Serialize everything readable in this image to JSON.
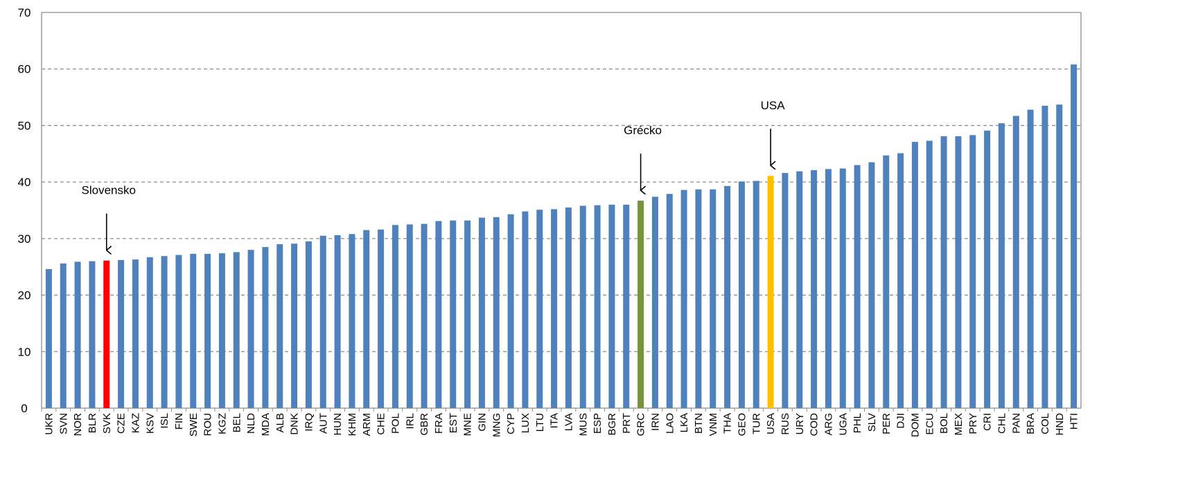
{
  "chart_data": {
    "type": "bar",
    "categories": [
      "UKR",
      "SVN",
      "NOR",
      "BLR",
      "SVK",
      "CZE",
      "KAZ",
      "KSV",
      "ISL",
      "FIN",
      "SWE",
      "ROU",
      "KGZ",
      "BEL",
      "NLD",
      "MDA",
      "ALB",
      "DNK",
      "IRQ",
      "AUT",
      "HUN",
      "KHM",
      "ARM",
      "CHE",
      "POL",
      "IRL",
      "GBR",
      "FRA",
      "EST",
      "MNE",
      "GIN",
      "MNG",
      "CYP",
      "LUX",
      "LTU",
      "ITA",
      "LVA",
      "MUS",
      "ESP",
      "BGR",
      "PRT",
      "GRC",
      "IRN",
      "LAO",
      "LKA",
      "BTN",
      "VNM",
      "THA",
      "GEO",
      "TUR",
      "USA",
      "RUS",
      "URY",
      "COD",
      "ARG",
      "UGA",
      "PHL",
      "SLV",
      "PER",
      "DJI",
      "DOM",
      "ECU",
      "BOL",
      "MEX",
      "PRY",
      "CRI",
      "CHL",
      "PAN",
      "BRA",
      "COL",
      "HND",
      "HTI"
    ],
    "values": [
      24.6,
      25.6,
      25.9,
      26.0,
      26.1,
      26.2,
      26.3,
      26.7,
      26.9,
      27.1,
      27.3,
      27.3,
      27.4,
      27.6,
      28.0,
      28.5,
      29.0,
      29.1,
      29.5,
      30.5,
      30.6,
      30.8,
      31.5,
      31.6,
      32.4,
      32.5,
      32.6,
      33.1,
      33.2,
      33.2,
      33.7,
      33.8,
      34.3,
      34.8,
      35.1,
      35.2,
      35.5,
      35.8,
      35.9,
      36.0,
      36.0,
      36.7,
      37.4,
      37.9,
      38.6,
      38.7,
      38.7,
      39.3,
      40.1,
      40.2,
      41.1,
      41.6,
      41.9,
      42.1,
      42.3,
      42.4,
      43.0,
      43.5,
      44.7,
      45.1,
      47.1,
      47.3,
      48.1,
      48.1,
      48.3,
      49.1,
      50.4,
      51.7,
      52.8,
      53.5,
      53.7,
      60.8
    ],
    "color": "#4f81bd",
    "annotations": [
      {
        "text": "Slovensko",
        "category": "SVK",
        "color": "#ff0000"
      },
      {
        "text": "Grécko",
        "category": "GRC",
        "color": "#77933c"
      },
      {
        "text": "USA",
        "category": "USA",
        "color": "#ffc000"
      }
    ],
    "ylim": [
      0,
      70
    ],
    "yticks": [
      0,
      10,
      20,
      30,
      40,
      50,
      60,
      70
    ],
    "grid": true
  }
}
